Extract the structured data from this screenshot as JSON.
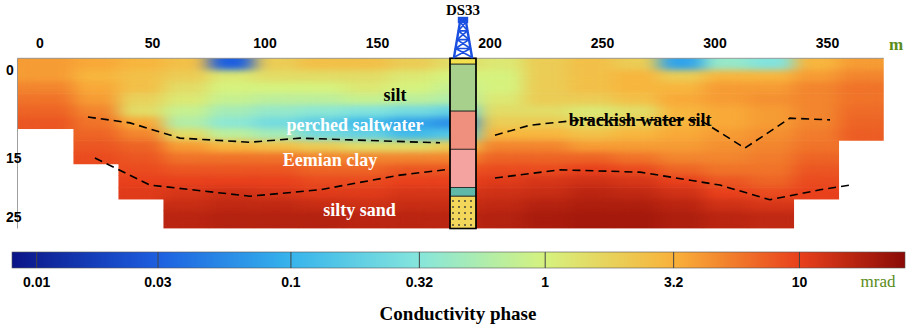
{
  "chart_data": {
    "type": "heatmap",
    "title": "Conductivity phase",
    "x_label": "m",
    "xlim": [
      -10,
      375
    ],
    "xticks": [
      0,
      50,
      100,
      150,
      200,
      250,
      300,
      350
    ],
    "ylim": [
      -2,
      27
    ],
    "yticks": [
      0,
      15,
      25
    ],
    "cells": {
      "x_edges": [
        -10,
        15,
        35,
        55,
        75,
        95,
        115,
        135,
        155,
        175,
        195,
        215,
        235,
        255,
        275,
        295,
        315,
        335,
        355,
        375
      ],
      "depth_edges": [
        -2,
        0,
        2,
        4,
        6,
        8,
        10,
        12,
        14,
        16,
        18,
        20,
        22,
        24,
        27
      ],
      "values": [
        [
          4,
          3.5,
          3,
          2.5,
          0.03,
          2,
          2.5,
          2.5,
          2,
          1.5,
          1.2,
          2,
          2.5,
          2,
          0.08,
          0.4,
          0.3,
          3,
          4
        ],
        [
          4,
          3,
          2.5,
          2,
          1.2,
          1.5,
          1.5,
          1.5,
          1.2,
          1,
          1,
          2,
          2.5,
          3,
          2,
          3,
          3,
          4,
          5
        ],
        [
          5,
          3.5,
          2.5,
          1.5,
          1,
          1,
          1,
          1.2,
          1,
          0.8,
          1,
          2,
          2.5,
          3,
          3,
          4,
          4,
          5,
          6
        ],
        [
          6,
          4,
          1.8,
          1.2,
          0.8,
          0.7,
          0.7,
          0.8,
          0.7,
          0.6,
          1.2,
          2,
          2,
          2.5,
          3.5,
          4,
          4.5,
          5,
          6
        ],
        [
          7,
          5,
          1.5,
          0.8,
          0.5,
          0.4,
          0.35,
          0.3,
          0.25,
          0.2,
          1.5,
          1.5,
          1.2,
          1.5,
          3,
          3.5,
          4,
          5,
          6.5
        ],
        [
          8,
          6,
          3.5,
          0.6,
          0.35,
          0.25,
          0.18,
          0.12,
          0.08,
          0.06,
          2,
          2,
          1.5,
          2,
          3,
          3.5,
          4,
          5,
          7
        ],
        [
          null,
          7,
          5,
          1.5,
          0.7,
          0.5,
          0.25,
          0.2,
          0.12,
          0.15,
          3,
          3,
          2.5,
          3,
          3.5,
          4,
          4.5,
          5.5,
          7.5
        ],
        [
          null,
          8,
          7,
          4,
          3,
          2.5,
          2,
          1.5,
          1.5,
          2,
          5,
          5,
          4,
          4,
          4,
          4.5,
          5,
          6,
          null
        ],
        [
          null,
          9,
          8,
          6,
          6,
          6,
          5,
          5,
          5,
          5,
          7,
          7,
          7,
          6,
          5,
          5,
          5.5,
          7,
          null
        ],
        [
          null,
          null,
          9,
          8,
          8,
          8,
          7,
          7,
          8,
          8,
          9,
          9,
          10,
          9,
          7,
          6,
          6,
          8,
          null
        ],
        [
          null,
          null,
          10,
          10,
          10,
          10,
          9,
          9,
          10,
          10,
          11,
          12,
          13,
          12,
          10,
          8,
          7,
          9,
          null
        ],
        [
          null,
          null,
          11,
          12,
          13,
          12,
          11,
          11,
          12,
          12,
          13,
          14,
          16,
          15,
          13,
          10,
          9,
          10,
          null
        ],
        [
          null,
          null,
          null,
          14,
          15,
          15,
          14,
          13,
          14,
          14,
          15,
          17,
          18,
          18,
          16,
          13,
          12,
          null,
          null
        ],
        [
          null,
          null,
          null,
          16,
          17,
          17,
          17,
          16,
          16,
          16,
          17,
          19,
          20,
          20,
          18,
          16,
          15,
          null,
          null
        ]
      ]
    },
    "colorbar": {
      "label": "mrad",
      "range": [
        0.008,
        26
      ],
      "ticks": [
        0.01,
        0.03,
        0.1,
        0.32,
        1,
        3.2,
        10
      ],
      "log": true
    },
    "boundaries": [
      {
        "x": [
          21.3,
          40,
          62.2,
          93.3,
          115.6,
          137.8,
          177.8,
          null,
          202.2,
          217.8,
          240,
          293.3,
          313.3,
          333.3,
          351.1
        ],
        "depth": [
          8,
          9,
          11.6,
          12.3,
          11.6,
          11.9,
          12.4,
          null,
          11.1,
          9.4,
          8.5,
          8.5,
          13.3,
          8.2,
          8.5
        ],
        "line_style": "dashed",
        "color": "#000000"
      },
      {
        "x": [
          24.4,
          48.9,
          93.3,
          124.4,
          160,
          180,
          null,
          202.2,
          231.1,
          266.7,
          302.2,
          324.4,
          346.7,
          360
        ],
        "depth": [
          15,
          19.6,
          21.5,
          20.4,
          17.9,
          17,
          null,
          18.4,
          17,
          17.4,
          19.6,
          22.1,
          20.4,
          19.6
        ],
        "line_style": "dashed",
        "color": "#000000"
      }
    ],
    "borehole": {
      "name": "DS33",
      "x": 188,
      "layers": [
        {
          "top": -2,
          "bottom": -1,
          "color": "#f2e14c"
        },
        {
          "top": -1,
          "bottom": 7,
          "color": "#a8d08d"
        },
        {
          "top": 7,
          "bottom": 13.5,
          "color": "#ef8f7d"
        },
        {
          "top": 13.5,
          "bottom": 20,
          "color": "#f5a3a0"
        },
        {
          "top": 20,
          "bottom": 21.5,
          "color": "#5fb8a8"
        },
        {
          "top": 21.5,
          "bottom": 27,
          "color": "#f2d75a",
          "marker": "dots"
        }
      ]
    },
    "annotations": [
      {
        "text": "silt",
        "x": 157.8,
        "depth": 4.3,
        "color": "#000000"
      },
      {
        "text": "perched saltwater",
        "x": 140,
        "depth": 9.4,
        "color": "#ffffff"
      },
      {
        "text": "brackish water silt",
        "x": 266.7,
        "depth": 8.5,
        "color": "#000000"
      },
      {
        "text": "Eemian clay",
        "x": 128.9,
        "depth": 15.3,
        "color": "#ffffff"
      },
      {
        "text": "silty sand",
        "x": 142,
        "depth": 23.9,
        "color": "#ffffff"
      }
    ]
  }
}
